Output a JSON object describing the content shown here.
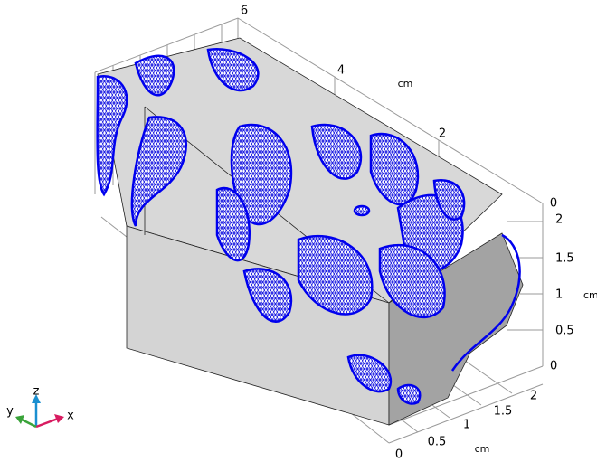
{
  "axes": {
    "y": {
      "ticks": [
        6,
        4,
        2,
        0
      ],
      "unit": "cm"
    },
    "z": {
      "ticks": [
        2,
        1.5,
        1,
        0.5,
        0
      ],
      "unit": "cm"
    },
    "x": {
      "ticks": [
        0,
        0.5,
        1,
        1.5,
        2
      ],
      "unit": "cm"
    }
  },
  "triad": {
    "x": "x",
    "y": "y",
    "z": "z"
  }
}
